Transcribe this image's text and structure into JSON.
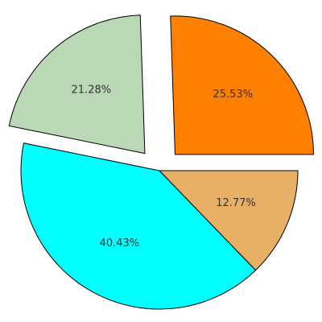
{
  "chart_data": {
    "type": "pie",
    "categories": [
      "",
      "",
      "",
      ""
    ],
    "values": [
      25.53,
      21.28,
      40.43,
      12.77
    ],
    "labels": [
      "25.53%",
      "21.28%",
      "40.43%",
      "12.77%"
    ],
    "exploded": [
      true,
      true,
      false,
      false
    ],
    "colors": [
      "#ff7f00",
      "#bad8b5",
      "#00ffff",
      "#e8b066"
    ],
    "title": "",
    "legend": "none"
  }
}
